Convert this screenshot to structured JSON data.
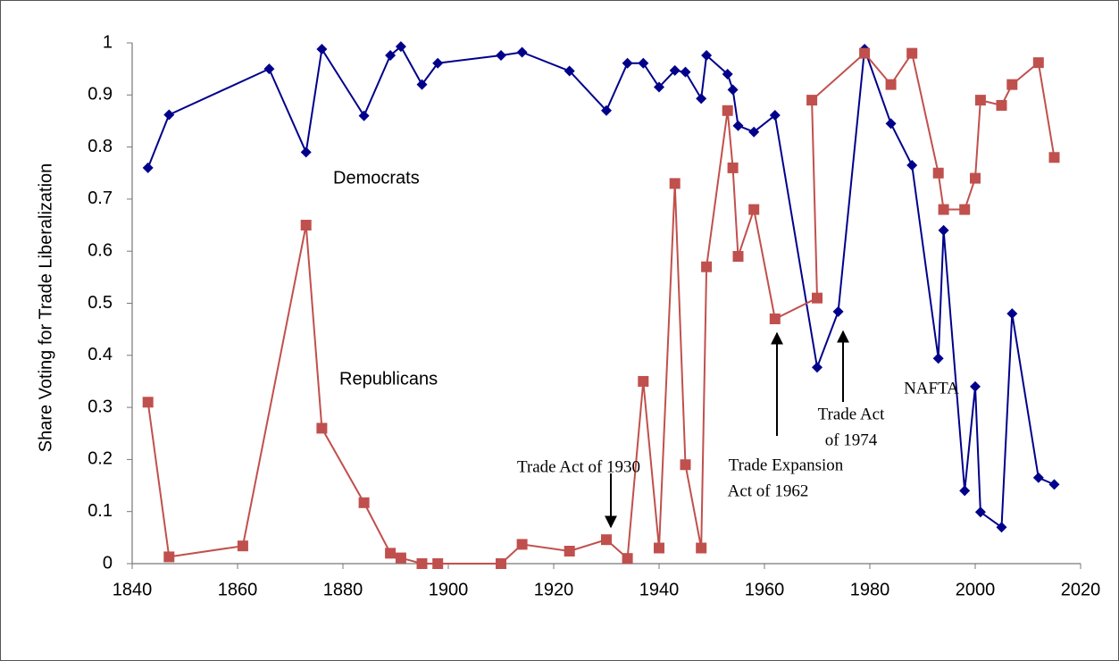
{
  "chart_data": {
    "type": "line",
    "ylabel": "Share Voting for Trade Liberalization",
    "xlim": [
      1840,
      2020
    ],
    "xticks": [
      1840,
      1860,
      1880,
      1900,
      1920,
      1940,
      1960,
      1980,
      2000,
      2020
    ],
    "ylim": [
      0,
      1
    ],
    "yticks": [
      0,
      0.1,
      0.2,
      0.3,
      0.4,
      0.5,
      0.6,
      0.7,
      0.8,
      0.9,
      1
    ],
    "grid": false,
    "series": [
      {
        "name": "Democrats",
        "color": "#00008b",
        "marker": "diamond",
        "x": [
          1843,
          1847,
          1866,
          1873,
          1876,
          1884,
          1889,
          1891,
          1895,
          1898,
          1910,
          1914,
          1923,
          1930,
          1934,
          1937,
          1940,
          1943,
          1945,
          1948,
          1949,
          1953,
          1954,
          1955,
          1958,
          1962,
          1970,
          1974,
          1979,
          1984,
          1988,
          1993,
          1994,
          1998,
          2000,
          2001,
          2005,
          2007,
          2012,
          2015
        ],
        "values": [
          0.76,
          0.862,
          0.95,
          0.79,
          0.988,
          0.86,
          0.976,
          0.993,
          0.92,
          0.961,
          0.976,
          0.982,
          0.946,
          0.87,
          0.961,
          0.961,
          0.915,
          0.947,
          0.944,
          0.893,
          0.976,
          0.94,
          0.91,
          0.841,
          0.829,
          0.861,
          0.377,
          0.484,
          0.988,
          0.845,
          0.765,
          0.394,
          0.64,
          0.14,
          0.34,
          0.099,
          0.07,
          0.48,
          0.165,
          0.152
        ]
      },
      {
        "name": "Republicans",
        "color": "#c0504d",
        "marker": "square",
        "x": [
          1843,
          1847,
          1861,
          1873,
          1876,
          1884,
          1889,
          1891,
          1895,
          1898,
          1910,
          1914,
          1923,
          1930,
          1934,
          1937,
          1940,
          1943,
          1945,
          1948,
          1949,
          1953,
          1954,
          1955,
          1958,
          1962,
          1970,
          1969,
          1979,
          1984,
          1988,
          1993,
          1994,
          1998,
          2000,
          2001,
          2005,
          2007,
          2012,
          2015
        ],
        "values": [
          0.31,
          0.013,
          0.034,
          0.65,
          0.26,
          0.117,
          0.02,
          0.011,
          0,
          0,
          0,
          0.037,
          0.024,
          0.046,
          0.01,
          0.35,
          0.03,
          0.73,
          0.19,
          0.03,
          0.57,
          0.87,
          0.76,
          0.59,
          0.68,
          0.47,
          0.51,
          0.89,
          0.98,
          0.92,
          0.98,
          0.75,
          0.68,
          0.68,
          0.74,
          0.89,
          0.88,
          0.92,
          0.962,
          0.78
        ]
      }
    ],
    "annotations": [
      {
        "lines": [
          "Trade Act of 1930"
        ]
      },
      {
        "lines": [
          "Trade Expansion",
          "Act of 1962"
        ]
      },
      {
        "lines": [
          "Trade Act",
          "of 1974"
        ]
      },
      {
        "lines": [
          "NAFTA"
        ]
      }
    ]
  }
}
